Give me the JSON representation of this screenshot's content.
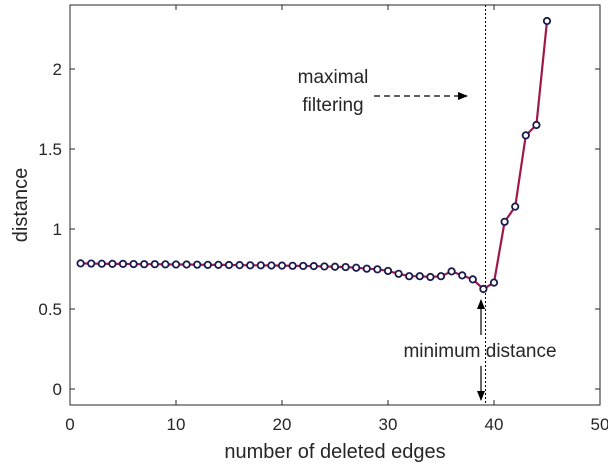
{
  "chart_data": {
    "type": "line",
    "xlabel": "number of deleted edges",
    "ylabel": "distance",
    "xlim": [
      0,
      50
    ],
    "ylim": [
      -0.1,
      2.4
    ],
    "xticks": [
      0,
      10,
      20,
      30,
      40,
      50
    ],
    "xtick_labels": [
      "0",
      "10",
      "20",
      "30",
      "40",
      "50"
    ],
    "yticks": [
      0,
      0.5,
      1,
      1.5,
      2
    ],
    "ytick_labels": [
      "0",
      "0.5",
      "1",
      "1.5",
      "2"
    ],
    "grid": false,
    "series": [
      {
        "line_color": "#a0184a",
        "marker_edge_color": "#1a1a4e",
        "marker_face_color": "#ffffff",
        "x": [
          1,
          2,
          3,
          4,
          5,
          6,
          7,
          8,
          9,
          10,
          11,
          12,
          13,
          14,
          15,
          16,
          17,
          18,
          19,
          20,
          21,
          22,
          23,
          24,
          25,
          26,
          27,
          28,
          29,
          30,
          31,
          32,
          33,
          34,
          35,
          36,
          37,
          38,
          39,
          40,
          41,
          42,
          43,
          44,
          45
        ],
        "y": [
          0.785,
          0.784,
          0.783,
          0.782,
          0.782,
          0.781,
          0.78,
          0.78,
          0.779,
          0.778,
          0.778,
          0.777,
          0.776,
          0.776,
          0.775,
          0.774,
          0.773,
          0.773,
          0.772,
          0.771,
          0.77,
          0.769,
          0.768,
          0.766,
          0.764,
          0.762,
          0.758,
          0.752,
          0.748,
          0.738,
          0.72,
          0.705,
          0.705,
          0.7,
          0.705,
          0.735,
          0.71,
          0.685,
          0.625,
          0.665,
          1.045,
          1.14,
          1.585,
          1.65,
          2.3
        ]
      }
    ],
    "vertical_line": {
      "x": 39.2,
      "style": "dotted"
    },
    "annotations": {
      "maximal_filtering": {
        "line1": "maximal",
        "line2": "filtering"
      },
      "minimum_distance": {
        "text": "minimum distance"
      }
    }
  }
}
